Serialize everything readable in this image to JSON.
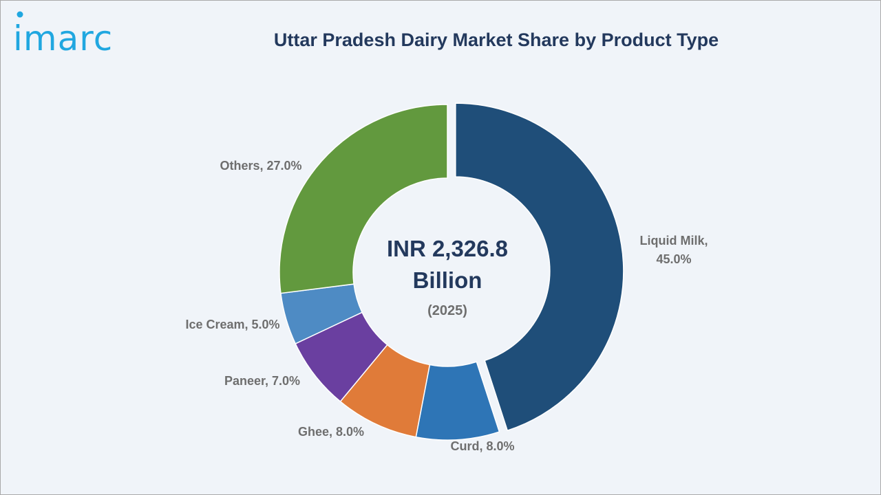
{
  "brand": {
    "logo_text": "imarc",
    "logo_color": "#20a7e0"
  },
  "chart_data": {
    "type": "pie",
    "variant": "donut",
    "title": "Uttar Pradesh Dairy Market Share by Product Type",
    "center": {
      "value": "INR 2,326.8",
      "unit": "Billion",
      "year": "(2025)"
    },
    "categories": [
      "Liquid Milk",
      "Curd",
      "Ghee",
      "Paneer",
      "Ice Cream",
      "Others"
    ],
    "values": [
      45.0,
      8.0,
      8.0,
      7.0,
      5.0,
      27.0
    ],
    "labels": [
      [
        "Liquid Milk,",
        "45.0%"
      ],
      [
        "Curd, 8.0%"
      ],
      [
        "Ghee, 8.0%"
      ],
      [
        "Paneer, 7.0%"
      ],
      [
        "Ice Cream, 5.0%"
      ],
      [
        "Others, 27.0%"
      ]
    ],
    "colors": [
      "#1f4e79",
      "#2e75b6",
      "#e07b39",
      "#6a3fa0",
      "#4e8bc4",
      "#62993e"
    ],
    "exploded": [
      "Liquid Milk"
    ],
    "legend": "none"
  }
}
